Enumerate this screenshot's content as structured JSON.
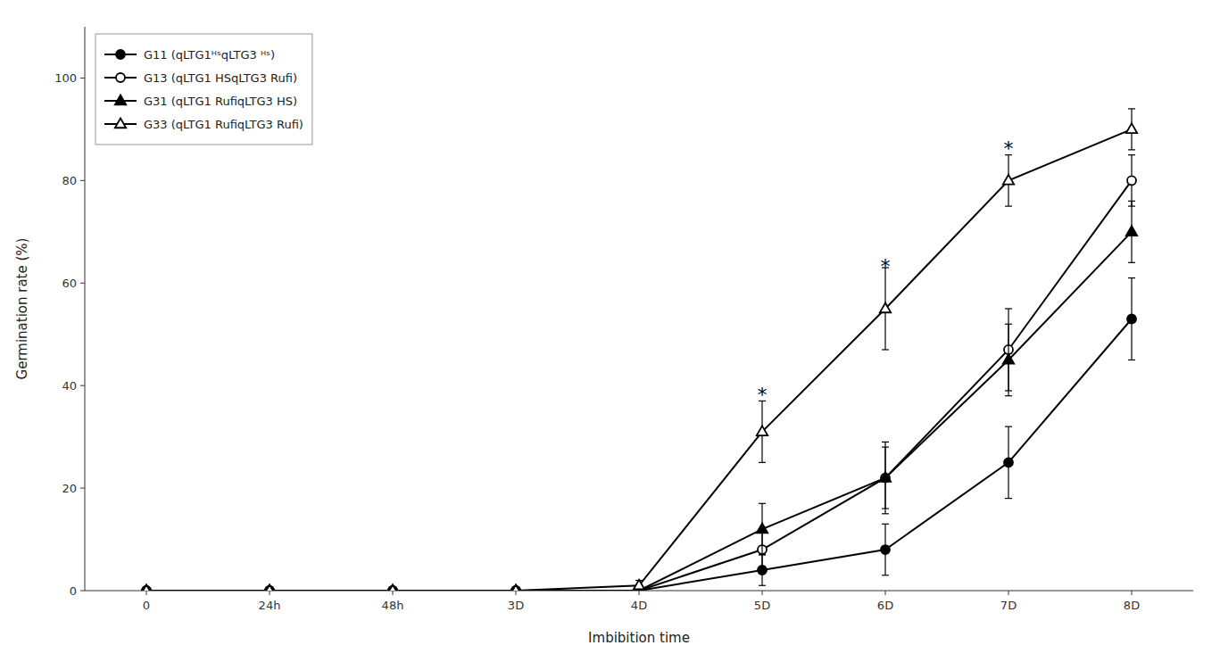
{
  "chart_data": {
    "type": "line",
    "xlabel": "Imbibition time",
    "ylabel": "Germination rate (%)",
    "categories": [
      "0",
      "24h",
      "48h",
      "3D",
      "4D",
      "5D",
      "6D",
      "7D",
      "8D"
    ],
    "series": [
      {
        "name": "G11 (qLTG1ᴴˢqLTG3 ᴴˢ)",
        "color": "black",
        "marker": "circle",
        "values": [
          0,
          0,
          0,
          0,
          0,
          4,
          8,
          25,
          53
        ],
        "errors": [
          0,
          0,
          0,
          0,
          0,
          3,
          5,
          7,
          8
        ]
      },
      {
        "name": "G13 (qLTG1 HSqLTG3 Rufi)",
        "color": "black",
        "marker": "circle-open",
        "values": [
          0,
          0,
          0,
          0,
          0,
          8,
          22,
          47,
          80
        ],
        "errors": [
          0,
          0,
          0,
          0,
          0,
          4,
          6,
          8,
          5
        ]
      },
      {
        "name": "G31 (qLTG1 RufiqLTG3 HS)",
        "color": "black",
        "marker": "triangle",
        "values": [
          0,
          0,
          0,
          0,
          0,
          12,
          22,
          45,
          70
        ],
        "errors": [
          0,
          0,
          0,
          0,
          0,
          5,
          7,
          7,
          6
        ]
      },
      {
        "name": "G33 (qLTG1 RufiqLTG3 Rufi)",
        "color": "black",
        "marker": "triangle-open",
        "values": [
          0,
          0,
          0,
          0,
          1,
          31,
          55,
          80,
          90
        ],
        "errors": [
          0,
          0,
          0,
          0,
          1,
          6,
          8,
          5,
          4
        ]
      }
    ],
    "annotations": [
      {
        "x": "5D",
        "y": 38,
        "text": "*"
      },
      {
        "x": "6D",
        "y": 63,
        "text": "*"
      },
      {
        "x": "7D",
        "y": 86,
        "text": "*"
      }
    ],
    "ylim": [
      0,
      110
    ],
    "yticks": [
      0,
      20,
      40,
      60,
      80,
      100
    ],
    "grid": false,
    "legend": "upper left"
  }
}
